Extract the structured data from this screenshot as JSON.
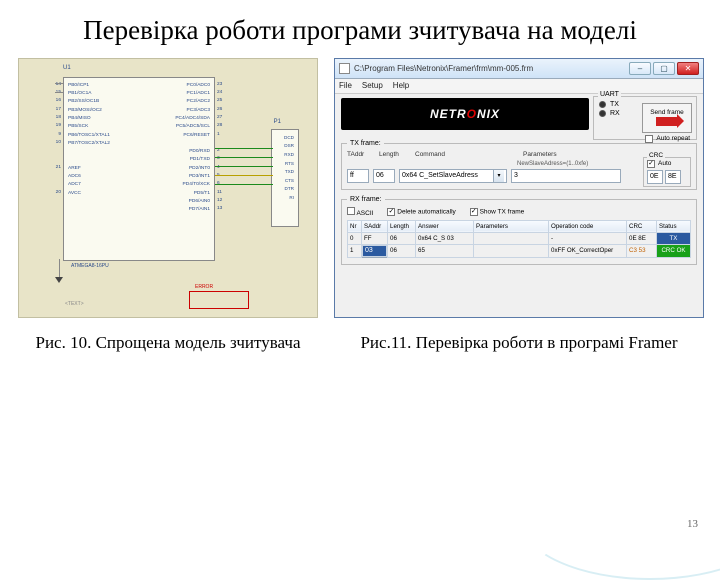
{
  "slide": {
    "title": "Перевірка роботи програми зчитувача на моделі",
    "page_number": "13"
  },
  "fig_left": {
    "caption": "Рис. 10. Спрощена модель зчитувача",
    "chip_ref": "U1",
    "chip_part": "ATMEGA8-16PU",
    "conn_ref": "P1",
    "error_label": "ERROR",
    "comm_label": "<TEXT>",
    "pins_left": "PB0/ICP1\nPB1/OC1A\nPB2/SS/OC1B\nPB3/MOSI/OC2\nPB4/MISO\nPB5/SCK\nPB6/TOSC1/XTAL1\nPB7/TOSC2/XTAL2\n\n\nAREF\nADC6\nADC7\nAVCC",
    "pins_right": "PC0/ADC0\nPC1/ADC1\nPC2/ADC2\nPC3/ADC3\nPC4/ADC4/SDA\nPC5/ADC5/SCL\nPC6/RESET\n\nPD0/RXD\nPD1/TXD\nPD2/INT0\nPD3/INT1\nPD4/T0/XCK\nPD5/T1\nPD6/AIN0\nPD7/AIN1",
    "nums_left": "14\n15\n16\n17\n18\n19\n9\n10\n\n\n21\n\n\n20",
    "nums_right": "23\n24\n25\n26\n27\n28\n1\n\n2\n3\n4\n5\n6\n11\n12\n13",
    "conn_pins": "DCD\nDSR\nRXD\nRTS\nTXD\nCTS\nDTR\nRI"
  },
  "fig_right": {
    "caption": "Рис.11. Перевірка роботи в програмі Framer",
    "win_title": "C:\\Program Files\\Netronix\\Framer\\frm\\mm-005.frm",
    "menu": {
      "file": "File",
      "setup": "Setup",
      "help": "Help"
    },
    "brand": "NETRONIX",
    "uart": {
      "legend": "UART",
      "tx": "TX",
      "rx": "RX",
      "send": "Send frame"
    },
    "auto_repeat": "Auto repeat",
    "tx_frame": {
      "legend": "TX frame:",
      "h_addr": "TAddr",
      "h_len": "Length",
      "h_cmd": "Command",
      "h_par": "Parameters",
      "addr": "ff",
      "len": "06",
      "cmd": "0x64  C_SetSlaveAdress",
      "par_caption": "NewSlaveAdress=(1..0xfe)",
      "par": "3",
      "crc_legend": "CRC",
      "crc_auto": "Auto",
      "crc1": "0E",
      "crc2": "8E"
    },
    "rx_frame": {
      "legend": "RX frame:",
      "ascii": "ASCII",
      "del": "Delete automatically",
      "show": "Show TX frame",
      "cols": {
        "nr": "Nr",
        "saddr": "SAddr",
        "len": "Length",
        "ans": "Answer",
        "par": "Parameters",
        "op": "Operation code",
        "crc": "CRC",
        "st": "Status"
      },
      "rows": [
        {
          "nr": "0",
          "saddr": "FF",
          "len": "06",
          "ans": "0x64  C_S 03",
          "par": " ",
          "op": "-",
          "crc": "0E 8E",
          "st": "TX",
          "st_class": "st-tx"
        },
        {
          "nr": "1",
          "saddr": "03",
          "len": "06",
          "ans": "65",
          "par": " ",
          "op": "0xFF  OK_CorrectOper",
          "crc": "C3 53",
          "st": "CRC OK",
          "st_class": "st-ok",
          "sel": true
        }
      ]
    }
  }
}
